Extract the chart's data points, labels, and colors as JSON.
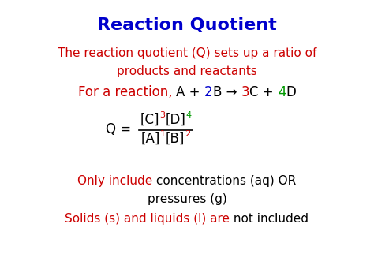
{
  "title": "Reaction Quotient",
  "title_color": "#0000CC",
  "title_fontsize": 16,
  "bg_color": "#ffffff",
  "line1": "The reaction quotient (Q) sets up a ratio of",
  "line2": "products and reactants",
  "line_color": "#CC0000",
  "line_fontsize": 11,
  "reaction_fontsize": 12,
  "formula_fontsize": 12,
  "formula_super_fontsize": 8,
  "note_fontsize": 11,
  "red": "#CC0000",
  "blue": "#0000CC",
  "green": "#009900",
  "black": "#000000"
}
